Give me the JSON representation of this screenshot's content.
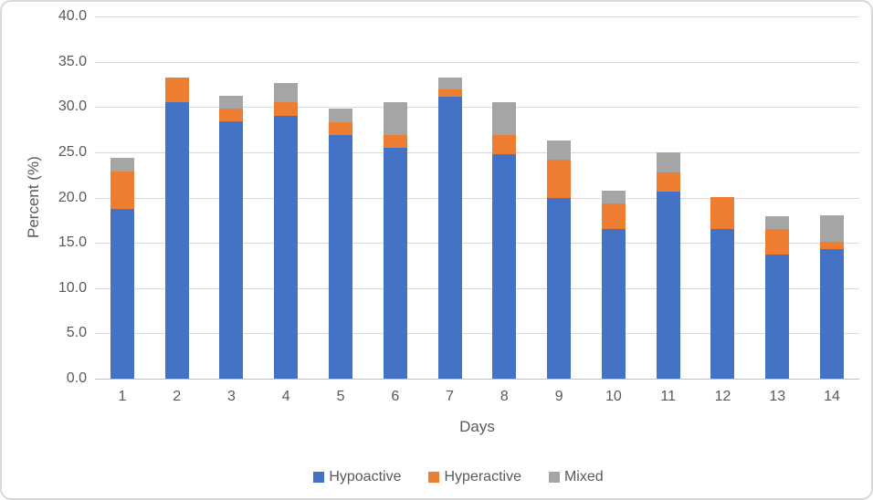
{
  "chart_data": {
    "type": "bar",
    "stacked": true,
    "xlabel": "Days",
    "ylabel": "Percent (%)",
    "ylim": [
      0,
      40
    ],
    "y_tick_step": 5,
    "y_tick_labels": [
      "40.0",
      "35.0",
      "30.0",
      "25.0",
      "20.0",
      "15.0",
      "10.0",
      "5.0",
      "0.0"
    ],
    "grid": true,
    "legend_position": "bottom",
    "categories": [
      "1",
      "2",
      "3",
      "4",
      "5",
      "6",
      "7",
      "8",
      "9",
      "10",
      "11",
      "12",
      "13",
      "14"
    ],
    "series": [
      {
        "name": "Hypoactive",
        "color": "#4472C4",
        "values": [
          18.7,
          30.5,
          28.4,
          29.0,
          26.9,
          25.5,
          31.1,
          24.8,
          20.0,
          16.5,
          20.7,
          16.5,
          13.7,
          14.3
        ]
      },
      {
        "name": "Hyperactive",
        "color": "#ED7D31",
        "values": [
          4.2,
          2.8,
          1.4,
          1.5,
          1.4,
          1.4,
          0.8,
          2.1,
          4.2,
          2.8,
          2.1,
          3.6,
          2.8,
          0.8
        ]
      },
      {
        "name": "Mixed",
        "color": "#A5A5A5",
        "values": [
          1.5,
          0,
          1.4,
          2.1,
          1.5,
          3.6,
          1.4,
          3.6,
          2.1,
          1.5,
          2.2,
          0,
          1.4,
          2.9
        ]
      }
    ],
    "totals": [
      24.4,
      33.3,
      31.2,
      32.6,
      29.8,
      30.5,
      33.3,
      30.5,
      26.3,
      20.8,
      25.0,
      20.1,
      17.9,
      18.0
    ]
  },
  "styles": {
    "text_color": "#595959",
    "gridline_color": "#D9D9D9",
    "axis_line_color": "#BFBFBF",
    "frame_border_color": "#D8D8D8",
    "background_color": "#FFFFFF"
  }
}
